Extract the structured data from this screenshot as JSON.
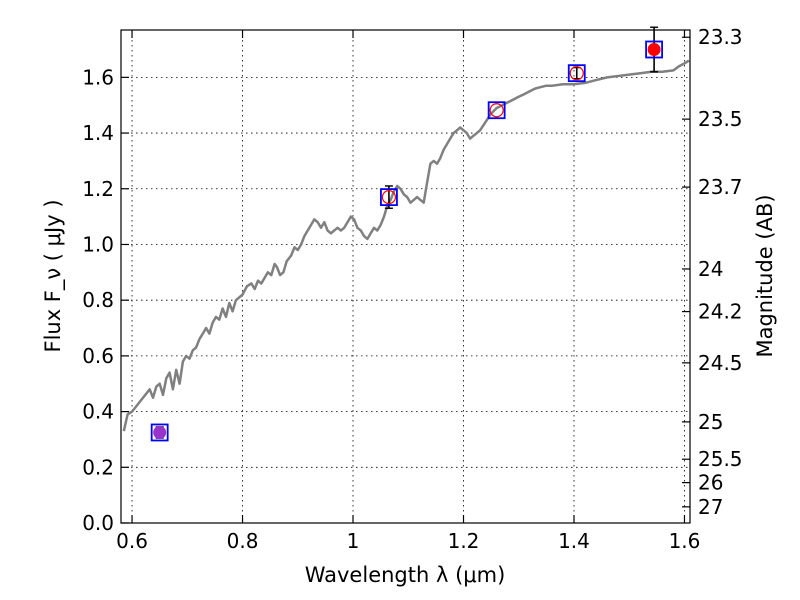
{
  "chart_data": {
    "type": "scatter",
    "xlabel": "Wavelength  λ (μm)",
    "ylabel": "Flux  F_ν  ( μJy )",
    "y2label": "Magnitude (AB)",
    "xlim": [
      0.58,
      1.61
    ],
    "ylim": [
      0.0,
      1.77
    ],
    "grid": true,
    "x_ticks": [
      {
        "value": 0.6,
        "label": "0.6"
      },
      {
        "value": 0.8,
        "label": "0.8"
      },
      {
        "value": 1.0,
        "label": "1"
      },
      {
        "value": 1.2,
        "label": "1.2"
      },
      {
        "value": 1.4,
        "label": "1.4"
      },
      {
        "value": 1.6,
        "label": "1.6"
      }
    ],
    "y_ticks": [
      {
        "value": 0.0,
        "label": "0.0"
      },
      {
        "value": 0.2,
        "label": "0.2"
      },
      {
        "value": 0.4,
        "label": "0.4"
      },
      {
        "value": 0.6,
        "label": "0.6"
      },
      {
        "value": 0.8,
        "label": "0.8"
      },
      {
        "value": 1.0,
        "label": "1.0"
      },
      {
        "value": 1.2,
        "label": "1.2"
      },
      {
        "value": 1.4,
        "label": "1.4"
      },
      {
        "value": 1.6,
        "label": "1.6"
      }
    ],
    "magnitude_ticks": [
      {
        "flux": 1.744,
        "label": "23.3"
      },
      {
        "flux": 1.45,
        "label": "23.5"
      },
      {
        "flux": 1.206,
        "label": "23.7"
      },
      {
        "flux": 0.912,
        "label": "24"
      },
      {
        "flux": 0.759,
        "label": "24.2"
      },
      {
        "flux": 0.575,
        "label": "24.5"
      },
      {
        "flux": 0.363,
        "label": "25"
      },
      {
        "flux": 0.229,
        "label": "25.5"
      },
      {
        "flux": 0.145,
        "label": "26"
      },
      {
        "flux": 0.058,
        "label": "27"
      }
    ],
    "model_spectrum": {
      "color": "#808080",
      "points": [
        [
          0.585,
          0.33
        ],
        [
          0.592,
          0.39
        ],
        [
          0.6,
          0.4
        ],
        [
          0.608,
          0.42
        ],
        [
          0.616,
          0.44
        ],
        [
          0.624,
          0.46
        ],
        [
          0.632,
          0.48
        ],
        [
          0.638,
          0.45
        ],
        [
          0.644,
          0.49
        ],
        [
          0.65,
          0.5
        ],
        [
          0.656,
          0.46
        ],
        [
          0.662,
          0.52
        ],
        [
          0.668,
          0.54
        ],
        [
          0.674,
          0.48
        ],
        [
          0.68,
          0.55
        ],
        [
          0.686,
          0.5
        ],
        [
          0.692,
          0.58
        ],
        [
          0.698,
          0.6
        ],
        [
          0.704,
          0.59
        ],
        [
          0.71,
          0.62
        ],
        [
          0.716,
          0.63
        ],
        [
          0.722,
          0.66
        ],
        [
          0.728,
          0.68
        ],
        [
          0.734,
          0.7
        ],
        [
          0.74,
          0.68
        ],
        [
          0.746,
          0.72
        ],
        [
          0.752,
          0.74
        ],
        [
          0.758,
          0.73
        ],
        [
          0.764,
          0.77
        ],
        [
          0.77,
          0.74
        ],
        [
          0.776,
          0.79
        ],
        [
          0.782,
          0.76
        ],
        [
          0.788,
          0.8
        ],
        [
          0.794,
          0.81
        ],
        [
          0.8,
          0.82
        ],
        [
          0.808,
          0.85
        ],
        [
          0.816,
          0.86
        ],
        [
          0.822,
          0.84
        ],
        [
          0.828,
          0.87
        ],
        [
          0.834,
          0.86
        ],
        [
          0.84,
          0.88
        ],
        [
          0.846,
          0.9
        ],
        [
          0.852,
          0.89
        ],
        [
          0.858,
          0.93
        ],
        [
          0.862,
          0.92
        ],
        [
          0.868,
          0.89
        ],
        [
          0.874,
          0.9
        ],
        [
          0.88,
          0.94
        ],
        [
          0.888,
          0.96
        ],
        [
          0.894,
          0.99
        ],
        [
          0.9,
          0.98
        ],
        [
          0.906,
          1.0
        ],
        [
          0.912,
          1.03
        ],
        [
          0.918,
          1.05
        ],
        [
          0.924,
          1.07
        ],
        [
          0.93,
          1.09
        ],
        [
          0.936,
          1.08
        ],
        [
          0.942,
          1.06
        ],
        [
          0.948,
          1.08
        ],
        [
          0.954,
          1.05
        ],
        [
          0.96,
          1.04
        ],
        [
          0.966,
          1.05
        ],
        [
          0.972,
          1.06
        ],
        [
          0.978,
          1.05
        ],
        [
          0.984,
          1.06
        ],
        [
          0.99,
          1.08
        ],
        [
          0.996,
          1.1
        ],
        [
          1.002,
          1.09
        ],
        [
          1.008,
          1.06
        ],
        [
          1.014,
          1.05
        ],
        [
          1.02,
          1.03
        ],
        [
          1.026,
          1.02
        ],
        [
          1.032,
          1.04
        ],
        [
          1.038,
          1.06
        ],
        [
          1.044,
          1.05
        ],
        [
          1.05,
          1.07
        ],
        [
          1.056,
          1.1
        ],
        [
          1.062,
          1.14
        ],
        [
          1.068,
          1.16
        ],
        [
          1.074,
          1.19
        ],
        [
          1.08,
          1.21
        ],
        [
          1.086,
          1.2
        ],
        [
          1.092,
          1.18
        ],
        [
          1.098,
          1.17
        ],
        [
          1.104,
          1.15
        ],
        [
          1.11,
          1.16
        ],
        [
          1.116,
          1.17
        ],
        [
          1.122,
          1.16
        ],
        [
          1.128,
          1.15
        ],
        [
          1.134,
          1.22
        ],
        [
          1.14,
          1.29
        ],
        [
          1.146,
          1.3
        ],
        [
          1.152,
          1.29
        ],
        [
          1.158,
          1.31
        ],
        [
          1.164,
          1.34
        ],
        [
          1.17,
          1.36
        ],
        [
          1.176,
          1.38
        ],
        [
          1.182,
          1.4
        ],
        [
          1.188,
          1.41
        ],
        [
          1.194,
          1.42
        ],
        [
          1.2,
          1.41
        ],
        [
          1.206,
          1.4
        ],
        [
          1.212,
          1.38
        ],
        [
          1.218,
          1.39
        ],
        [
          1.224,
          1.4
        ],
        [
          1.23,
          1.41
        ],
        [
          1.24,
          1.44
        ],
        [
          1.25,
          1.47
        ],
        [
          1.26,
          1.49
        ],
        [
          1.27,
          1.5
        ],
        [
          1.28,
          1.51
        ],
        [
          1.29,
          1.52
        ],
        [
          1.3,
          1.53
        ],
        [
          1.31,
          1.54
        ],
        [
          1.32,
          1.55
        ],
        [
          1.33,
          1.56
        ],
        [
          1.34,
          1.565
        ],
        [
          1.35,
          1.57
        ],
        [
          1.36,
          1.57
        ],
        [
          1.38,
          1.575
        ],
        [
          1.4,
          1.575
        ],
        [
          1.42,
          1.58
        ],
        [
          1.44,
          1.59
        ],
        [
          1.46,
          1.6
        ],
        [
          1.48,
          1.605
        ],
        [
          1.5,
          1.61
        ],
        [
          1.52,
          1.615
        ],
        [
          1.54,
          1.62
        ],
        [
          1.56,
          1.62
        ],
        [
          1.58,
          1.625
        ],
        [
          1.59,
          1.64
        ],
        [
          1.6,
          1.65
        ],
        [
          1.608,
          1.66
        ]
      ]
    },
    "model_points": {
      "marker": "square",
      "color": "#0000ff",
      "points": [
        [
          0.65,
          0.325
        ],
        [
          1.065,
          1.17
        ],
        [
          1.26,
          1.482
        ],
        [
          1.405,
          1.615
        ],
        [
          1.545,
          1.7
        ]
      ]
    },
    "observed_points": {
      "color": "#ff0000",
      "detection_color": "#ff0000",
      "points": [
        {
          "x": 0.65,
          "y": 0.325,
          "yerr": 0.02,
          "fill": "#9933cc"
        },
        {
          "x": 1.065,
          "y": 1.17,
          "yerr": 0.04,
          "fill": "none"
        },
        {
          "x": 1.26,
          "y": 1.482,
          "yerr": 0.0,
          "fill": "none"
        },
        {
          "x": 1.405,
          "y": 1.615,
          "yerr": 0.02,
          "fill": "none"
        },
        {
          "x": 1.545,
          "y": 1.7,
          "yerr": 0.08,
          "fill": "#ff0000"
        }
      ]
    }
  }
}
